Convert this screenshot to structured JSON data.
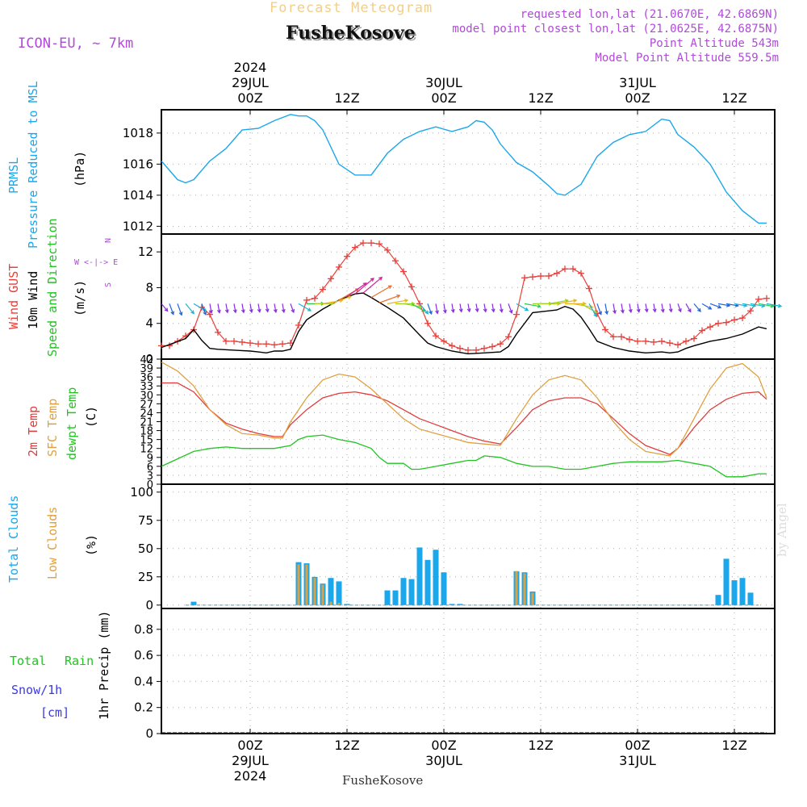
{
  "header": {
    "supertitle": "Forecast Meteogram",
    "model": "ICON-EU, ~ 7km",
    "location": "FusheKosove",
    "requested": "requested lon,lat (21.0670E, 42.6869N)",
    "closest": "model point closest lon,lat (21.0625E, 42.6875N)",
    "point_alt": "Point Altitude 543m",
    "model_alt": "Model Point Altitude 559.5m",
    "footer_location": "FusheKosove",
    "watermark": "by Angel"
  },
  "time_axis": {
    "top_labels": [
      {
        "h": 0,
        "lines": [
          "2024",
          "29JUL",
          "00Z"
        ]
      },
      {
        "h": 12,
        "lines": [
          "12Z"
        ]
      },
      {
        "h": 24,
        "lines": [
          "30JUL",
          "00Z"
        ]
      },
      {
        "h": 36,
        "lines": [
          "12Z"
        ]
      },
      {
        "h": 48,
        "lines": [
          "31JUL",
          "00Z"
        ]
      },
      {
        "h": 60,
        "lines": [
          "12Z"
        ]
      }
    ],
    "bottom_labels": [
      {
        "h": 0,
        "lines": [
          "00Z",
          "29JUL",
          "2024"
        ]
      },
      {
        "h": 12,
        "lines": [
          "12Z"
        ]
      },
      {
        "h": 24,
        "lines": [
          "00Z",
          "30JUL"
        ]
      },
      {
        "h": 36,
        "lines": [
          "12Z"
        ]
      },
      {
        "h": 48,
        "lines": [
          "00Z",
          "31JUL"
        ]
      },
      {
        "h": 60,
        "lines": [
          "12Z"
        ]
      }
    ],
    "x_range_hours": [
      -11,
      65
    ]
  },
  "colors": {
    "pressure": "#1aa7ec",
    "gust": "#e8403a",
    "wind": "#000000",
    "temp2m": "#e03c3c",
    "sfctemp": "#e0a040",
    "dewpt": "#22c322",
    "total_clouds": "#1aa7ec",
    "low_clouds": "#e0a040",
    "rain": "#22c322",
    "snow": "#3a3ae0",
    "label_purple": "#b04ad8"
  },
  "panels": {
    "pressure": {
      "labels": [
        "PRMSL",
        "Pressure Reduced to MSL",
        "(hPa)"
      ]
    },
    "wind": {
      "labels": [
        "Wind GUST",
        "10m Wind",
        "Speed and Direction",
        "(m/s)"
      ],
      "compass": [
        "N",
        "W <-|-> E",
        "S"
      ]
    },
    "temp": {
      "labels": [
        "2m Temp",
        "SFC Temp",
        "dewpt Temp",
        "(C)"
      ]
    },
    "clouds": {
      "labels": [
        "Total Clouds",
        "Low Clouds",
        "(%)"
      ]
    },
    "precip": {
      "labels": [
        "Total",
        "Rain",
        "Snow/1h",
        "[cm]",
        "1hr Precip (mm)"
      ]
    }
  },
  "chart_data": [
    {
      "type": "line",
      "title": "PRMSL Pressure Reduced to MSL",
      "ylabel": "(hPa)",
      "ylim": [
        1011.5,
        1019.5
      ],
      "yticks": [
        1012,
        1014,
        1016,
        1018
      ],
      "series": [
        {
          "name": "PRMSL",
          "x": [
            -11,
            -9,
            -8,
            -7,
            -5,
            -3,
            -1,
            1,
            3,
            5,
            6,
            7,
            8,
            9,
            11,
            13,
            15,
            17,
            19,
            21,
            23,
            25,
            27,
            28,
            29,
            30,
            31,
            33,
            35,
            37,
            38,
            39,
            41,
            43,
            45,
            47,
            49,
            51,
            52,
            53,
            55,
            57,
            59,
            61,
            63,
            64
          ],
          "y": [
            1016.2,
            1015,
            1014.8,
            1015,
            1016.2,
            1017,
            1018.2,
            1018.3,
            1018.8,
            1019.2,
            1019.1,
            1019.1,
            1018.8,
            1018.2,
            1016,
            1015.3,
            1015.3,
            1016.7,
            1017.6,
            1018.1,
            1018.4,
            1018.1,
            1018.4,
            1018.8,
            1018.7,
            1018.2,
            1017.3,
            1016.1,
            1015.5,
            1014.6,
            1014.1,
            1014,
            1014.7,
            1016.5,
            1017.4,
            1017.9,
            1018.1,
            1018.9,
            1018.8,
            1017.9,
            1017.1,
            1016,
            1014.2,
            1013,
            1012.2,
            1012.2
          ]
        }
      ]
    },
    {
      "type": "line",
      "title": "Wind GUST / 10m Wind Speed and Direction",
      "ylabel": "(m/s)",
      "ylim": [
        0,
        14
      ],
      "yticks": [
        0,
        4,
        8,
        12
      ],
      "series": [
        {
          "name": "Wind GUST",
          "x": [
            -11,
            -10,
            -9,
            -8,
            -7,
            -6,
            -5,
            -4,
            -3,
            -2,
            -1,
            0,
            1,
            2,
            3,
            4,
            5,
            6,
            7,
            8,
            9,
            10,
            11,
            12,
            13,
            14,
            15,
            16,
            17,
            18,
            19,
            20,
            21,
            22,
            23,
            24,
            25,
            26,
            27,
            28,
            29,
            30,
            31,
            32,
            33,
            34,
            35,
            36,
            37,
            38,
            39,
            40,
            41,
            42,
            43,
            44,
            45,
            46,
            47,
            48,
            49,
            50,
            51,
            52,
            53,
            54,
            55,
            56,
            57,
            58,
            59,
            60,
            61,
            62,
            63,
            64
          ],
          "y": [
            1.5,
            1.5,
            2,
            2.6,
            3.3,
            5.8,
            5,
            3,
            2,
            2,
            1.9,
            1.8,
            1.7,
            1.7,
            1.6,
            1.7,
            1.8,
            3.8,
            6.6,
            6.8,
            7.8,
            9,
            10.3,
            11.5,
            12.5,
            13,
            13,
            12.9,
            12.2,
            11,
            9.8,
            8.1,
            6.2,
            4,
            2.6,
            2,
            1.5,
            1.2,
            1,
            1,
            1.2,
            1.4,
            1.7,
            2.5,
            5,
            9.1,
            9.2,
            9.3,
            9.3,
            9.6,
            10.1,
            10.1,
            9.6,
            7.9,
            5.1,
            3.3,
            2.5,
            2.5,
            2.2,
            2,
            2,
            1.9,
            2,
            1.8,
            1.6,
            2,
            2.3,
            3.2,
            3.6,
            4,
            4.1,
            4.4,
            4.6,
            5.4,
            6.7,
            6.8
          ]
        },
        {
          "name": "10m Wind",
          "x": [
            -11,
            -8,
            -7,
            -6,
            -5,
            -4,
            -2,
            0,
            1,
            2,
            3,
            4,
            5,
            6,
            7,
            9,
            11,
            13,
            14,
            15,
            17,
            19,
            21,
            22,
            23,
            25,
            27,
            29,
            31,
            32,
            33,
            35,
            37,
            38,
            39,
            40,
            41,
            42,
            43,
            45,
            47,
            49,
            51,
            52,
            53,
            54,
            55,
            57,
            59,
            61,
            63,
            64
          ],
          "y": [
            1.3,
            2.3,
            3.3,
            2.1,
            1.2,
            1.1,
            1,
            0.9,
            0.8,
            0.7,
            0.9,
            0.9,
            1.1,
            3.1,
            4.4,
            5.6,
            6.6,
            7.3,
            7.4,
            6.9,
            5.8,
            4.6,
            2.7,
            1.8,
            1.4,
            0.9,
            0.6,
            0.7,
            0.8,
            1.4,
            2.8,
            5.2,
            5.4,
            5.5,
            5.9,
            5.6,
            4.7,
            3.4,
            2,
            1.3,
            0.9,
            0.7,
            0.8,
            0.7,
            0.8,
            1.2,
            1.5,
            2,
            2.3,
            2.8,
            3.6,
            3.4
          ]
        }
      ],
      "wind_barbs": {
        "x": [
          -11,
          -10,
          -9,
          -8,
          -7,
          -6,
          -5,
          -4,
          -3,
          -2,
          -1,
          0,
          1,
          2,
          3,
          4,
          5,
          6,
          7,
          8,
          9,
          10,
          11,
          12,
          13,
          14,
          15,
          16,
          17,
          18,
          19,
          20,
          21,
          22,
          23,
          24,
          25,
          26,
          27,
          28,
          29,
          30,
          31,
          32,
          33,
          34,
          35,
          36,
          37,
          38,
          39,
          40,
          41,
          42,
          43,
          44,
          45,
          46,
          47,
          48,
          49,
          50,
          51,
          52,
          53,
          54,
          55,
          56,
          57,
          58,
          59,
          60,
          61,
          62,
          63,
          64
        ],
        "speed": [
          1.3,
          2,
          2.3,
          2.6,
          3.3,
          2.1,
          1.2,
          1.1,
          1,
          1,
          1,
          0.9,
          0.8,
          0.7,
          0.9,
          0.9,
          1.1,
          3.1,
          4.4,
          5,
          5.6,
          6.1,
          6.6,
          7,
          7.3,
          7.4,
          6.9,
          6.3,
          5.8,
          5.2,
          4.6,
          3.6,
          2.7,
          1.8,
          1.4,
          1.1,
          0.9,
          0.7,
          0.6,
          0.6,
          0.7,
          0.7,
          0.8,
          1.4,
          2.8,
          4,
          5.2,
          5.3,
          5.4,
          5.5,
          5.9,
          5.6,
          4.7,
          3.4,
          2,
          1.6,
          1.3,
          1.1,
          0.9,
          0.8,
          0.7,
          0.7,
          0.8,
          0.7,
          0.8,
          1.2,
          1.5,
          1.7,
          2,
          2.1,
          2.3,
          2.5,
          2.8,
          3.2,
          3.6,
          3.4
        ],
        "dir_deg": [
          320,
          340,
          340,
          320,
          300,
          340,
          350,
          350,
          350,
          350,
          350,
          350,
          350,
          350,
          350,
          350,
          340,
          300,
          270,
          270,
          260,
          250,
          240,
          235,
          230,
          230,
          240,
          250,
          260,
          270,
          280,
          300,
          320,
          340,
          350,
          350,
          350,
          350,
          350,
          350,
          350,
          350,
          350,
          340,
          300,
          280,
          270,
          270,
          260,
          260,
          270,
          280,
          300,
          330,
          340,
          350,
          350,
          350,
          350,
          350,
          350,
          350,
          350,
          350,
          340,
          330,
          320,
          300,
          290,
          280,
          280,
          280,
          280,
          280,
          280,
          280
        ]
      }
    },
    {
      "type": "line",
      "title": "2m Temp / SFC Temp / dewpt Temp",
      "ylabel": "(C)",
      "ylim": [
        0,
        42
      ],
      "yticks": [
        0,
        3,
        6,
        9,
        12,
        15,
        18,
        21,
        24,
        27,
        30,
        33,
        36,
        39,
        42
      ],
      "series": [
        {
          "name": "2m Temp",
          "x": [
            -11,
            -9,
            -7,
            -5,
            -3,
            -1,
            1,
            3,
            4,
            5,
            7,
            9,
            11,
            13,
            15,
            17,
            19,
            21,
            23,
            25,
            27,
            29,
            31,
            33,
            35,
            37,
            39,
            41,
            43,
            45,
            47,
            49,
            51,
            52,
            53,
            55,
            57,
            59,
            61,
            63,
            64
          ],
          "y": [
            34,
            34,
            31,
            25,
            20.5,
            18.5,
            17,
            16,
            16,
            20,
            25,
            29,
            30.5,
            31,
            30,
            28,
            25,
            22,
            20,
            18,
            16,
            14.5,
            13.5,
            19,
            25,
            28,
            29,
            29,
            27,
            22,
            17,
            13,
            11,
            10,
            12,
            19,
            25,
            28.5,
            30.5,
            31,
            28.5
          ]
        },
        {
          "name": "SFC Temp",
          "x": [
            -11,
            -9,
            -7,
            -5,
            -3,
            -1,
            1,
            3,
            4,
            5,
            7,
            9,
            11,
            13,
            15,
            17,
            19,
            21,
            23,
            25,
            27,
            29,
            31,
            33,
            35,
            37,
            39,
            41,
            43,
            45,
            47,
            49,
            51,
            52,
            53,
            55,
            57,
            59,
            61,
            63,
            64
          ],
          "y": [
            41,
            38,
            33,
            25,
            20,
            17,
            16.5,
            15.5,
            15.5,
            21,
            29,
            35,
            37,
            36,
            32,
            27,
            22,
            18.5,
            17,
            15.5,
            14,
            13.5,
            13,
            22,
            30,
            35,
            36.5,
            35,
            29,
            21,
            15,
            11,
            10,
            9.5,
            12,
            22,
            32,
            39,
            40.5,
            36,
            29
          ]
        },
        {
          "name": "dewpt Temp",
          "x": [
            -11,
            -9,
            -7,
            -5,
            -3,
            -1,
            1,
            3,
            5,
            6,
            7,
            9,
            11,
            13,
            15,
            16,
            17,
            19,
            20,
            21,
            23,
            25,
            27,
            28,
            29,
            31,
            33,
            35,
            37,
            39,
            41,
            43,
            45,
            47,
            49,
            51,
            53,
            55,
            57,
            59,
            61,
            63,
            64
          ],
          "y": [
            6,
            8.5,
            11,
            12,
            12.5,
            12,
            12,
            12,
            13,
            15,
            16,
            16.5,
            15,
            14,
            12,
            9,
            7,
            7,
            5,
            5,
            6,
            7,
            8,
            8,
            9.5,
            9,
            7,
            6,
            6,
            5,
            5,
            6,
            7,
            7.5,
            7.5,
            7.5,
            8,
            7,
            6,
            2.5,
            2.5,
            3.5,
            3.5
          ]
        }
      ]
    },
    {
      "type": "bar",
      "title": "Total Clouds / Low Clouds",
      "ylabel": "(%)",
      "ylim": [
        -3,
        107
      ],
      "yticks": [
        0,
        25,
        50,
        75,
        100
      ],
      "series": [
        {
          "name": "Total Clouds",
          "x": [
            -7,
            6,
            7,
            8,
            9,
            10,
            11,
            12,
            17,
            18,
            19,
            20,
            21,
            22,
            23,
            24,
            25,
            26,
            33,
            34,
            35,
            58,
            59,
            60,
            61,
            62
          ],
          "values": [
            3,
            38,
            37,
            25,
            19,
            24,
            21,
            1,
            13,
            13,
            24,
            23,
            51,
            40,
            49,
            29,
            1,
            1,
            30,
            29,
            12,
            9,
            41,
            22,
            24,
            11
          ]
        },
        {
          "name": "Low Clouds",
          "x": [
            6,
            7,
            8,
            9,
            10,
            11,
            33,
            34,
            35
          ],
          "values": [
            36,
            36,
            24,
            18,
            3,
            2,
            30,
            28,
            11
          ]
        }
      ]
    },
    {
      "type": "line",
      "title": "1hr Precip",
      "ylabel": "1hr Precip (mm)",
      "ylim": [
        0,
        0.96
      ],
      "yticks": [
        0,
        0.2,
        0.4,
        0.6,
        0.8
      ],
      "series": [
        {
          "name": "Total Rain",
          "x": [
            -11,
            64
          ],
          "y": [
            0,
            0
          ]
        },
        {
          "name": "Snow/1h",
          "x": [
            -11,
            64
          ],
          "y": [
            0,
            0
          ]
        }
      ]
    }
  ]
}
